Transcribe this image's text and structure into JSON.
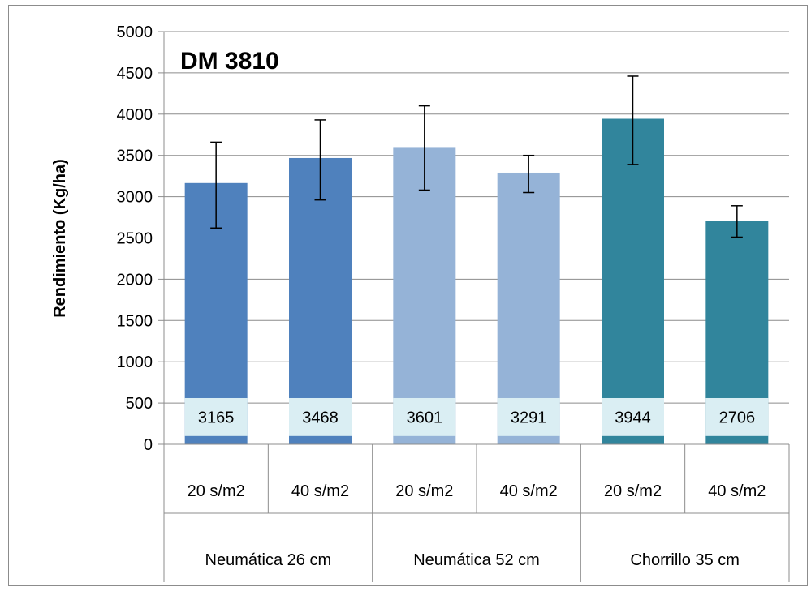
{
  "chart_data": {
    "type": "bar",
    "title": "DM 3810",
    "ylabel": "Rendimiento (Kg/ha)",
    "xlabel": "",
    "ylim": [
      0,
      5000
    ],
    "yticks": [
      0,
      500,
      1000,
      1500,
      2000,
      2500,
      3000,
      3500,
      4000,
      4500,
      5000
    ],
    "grid": true,
    "legend": "none",
    "groups": [
      {
        "label": "Neumática 26 cm",
        "color": "#4f81bd"
      },
      {
        "label": "Neumática 52 cm",
        "color": "#95b3d7"
      },
      {
        "label": "Chorrillo 35 cm",
        "color": "#31859c"
      }
    ],
    "categories": [
      "20 s/m2",
      "40 s/m2",
      "20 s/m2",
      "40 s/m2",
      "20 s/m2",
      "40 s/m2"
    ],
    "group_index": [
      0,
      0,
      1,
      1,
      2,
      2
    ],
    "values": [
      3165,
      3468,
      3601,
      3291,
      3944,
      2706
    ],
    "data_labels": [
      "3165",
      "3468",
      "3601",
      "3291",
      "3944",
      "2706"
    ],
    "error_low": [
      2620,
      2960,
      3080,
      3050,
      3390,
      2510
    ],
    "error_high": [
      3660,
      3930,
      4100,
      3500,
      4460,
      2890
    ],
    "data_label_bg": "#daeef3"
  }
}
